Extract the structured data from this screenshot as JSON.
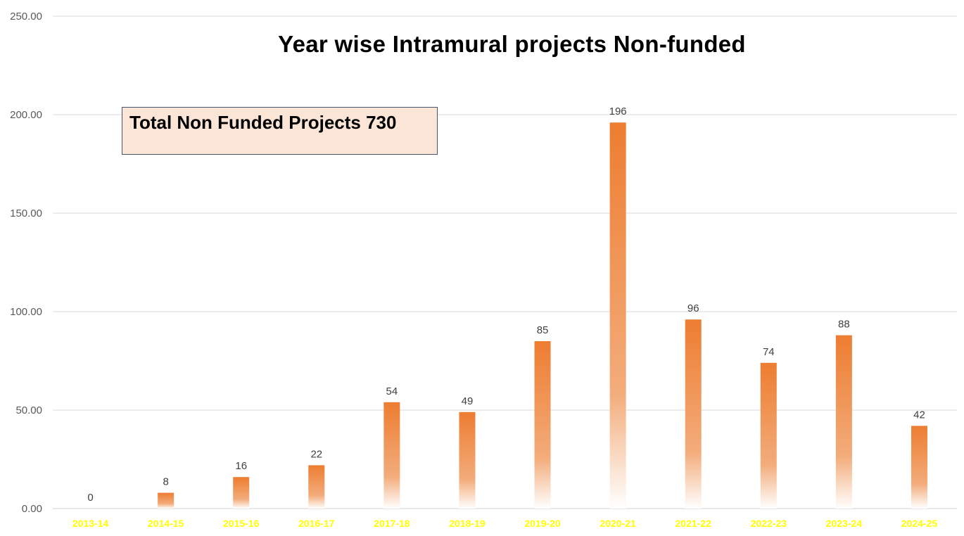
{
  "chart_data": {
    "type": "bar",
    "title": "Year wise Intramural projects Non-funded",
    "categories": [
      "2013-14",
      "2014-15",
      "2015-16",
      "2016-17",
      "2017-18",
      "2018-19",
      "2019-20",
      "2020-21",
      "2021-22",
      "2022-23",
      "2023-24",
      "2024-25"
    ],
    "values": [
      0,
      8,
      16,
      22,
      54,
      49,
      85,
      196,
      96,
      74,
      88,
      42
    ],
    "data_labels": [
      "0",
      "8",
      "16",
      "22",
      "54",
      "49",
      "85",
      "196",
      "96",
      "74",
      "88",
      "42"
    ],
    "ylim": [
      0,
      250
    ],
    "y_ticks": [
      "0.00",
      "50.00",
      "100.00",
      "150.00",
      "200.00",
      "250.00"
    ],
    "y_tick_values": [
      0,
      50,
      100,
      150,
      200,
      250
    ],
    "grid": true,
    "legend": "none",
    "xlabel": "",
    "ylabel": ""
  },
  "annotation": {
    "text": "Total Non Funded Projects 730"
  },
  "colors": {
    "bar_top": "#ed7d31",
    "bar_bottom": "#ffffff",
    "x_tick_labels": "#ffff00",
    "y_tick_labels": "#595959",
    "data_labels": "#404040",
    "gridlines": "#d9d9d9",
    "annotation_fill": "#fbe5d6",
    "annotation_border": "#44546a"
  }
}
